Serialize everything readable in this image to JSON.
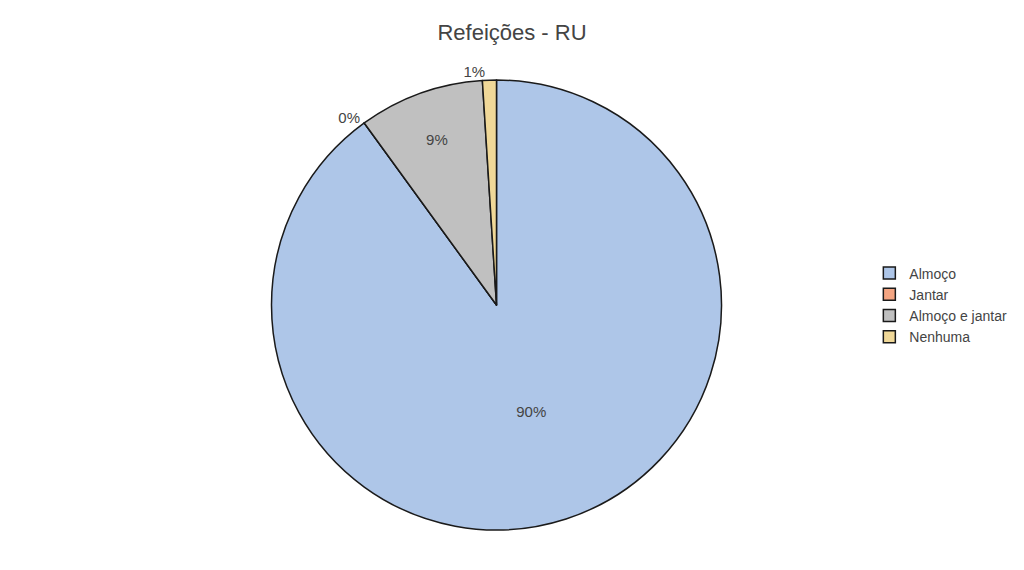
{
  "chart_data": {
    "type": "pie",
    "title": "Refeições - RU",
    "categories": [
      "Almoço",
      "Jantar",
      "Almoço e jantar",
      "Nenhuma"
    ],
    "values": [
      90,
      0,
      9,
      1
    ],
    "value_labels": [
      "90%",
      "0%",
      "9%",
      "1%"
    ],
    "colors": [
      "#aec6e8",
      "#f4a582",
      "#c0c0c0",
      "#f0d898"
    ],
    "data_labels": true,
    "legend": "right"
  }
}
